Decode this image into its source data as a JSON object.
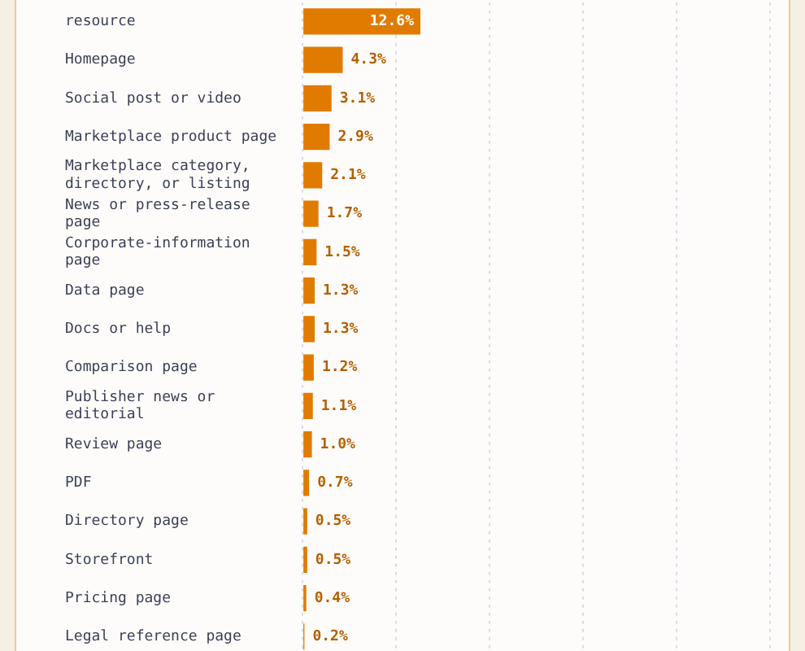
{
  "chart_data": {
    "type": "bar",
    "orientation": "horizontal",
    "categories": [
      "resource",
      "Homepage",
      "Social post or video",
      "Marketplace product page",
      "Marketplace category, directory, or listing",
      "News or press-release page",
      "Corporate-information page",
      "Data page",
      "Docs or help",
      "Comparison page",
      "Publisher news or editorial",
      "Review page",
      "PDF",
      "Directory page",
      "Storefront",
      "Pricing page",
      "Legal reference page"
    ],
    "values": [
      12.6,
      4.3,
      3.1,
      2.9,
      2.1,
      1.7,
      1.5,
      1.3,
      1.3,
      1.2,
      1.1,
      1.0,
      0.7,
      0.5,
      0.5,
      0.4,
      0.2
    ],
    "value_labels": [
      "12.6%",
      "4.3%",
      "3.1%",
      "2.9%",
      "2.1%",
      "1.7%",
      "1.5%",
      "1.3%",
      "1.3%",
      "1.2%",
      "1.1%",
      "1.0%",
      "0.7%",
      "0.5%",
      "0.5%",
      "0.4%",
      "0.2%"
    ],
    "color": "#e07b00",
    "xlim": [
      0,
      52
    ],
    "xticks": [
      {
        "value": 0,
        "label": null
      },
      {
        "value": 10,
        "label": null
      },
      {
        "value": 20,
        "label": null
      },
      {
        "value": 30,
        "label": null
      },
      {
        "value": 40,
        "label": null
      },
      {
        "value": 50,
        "label": null
      }
    ],
    "grid": "x",
    "tick_labels": "y"
  }
}
